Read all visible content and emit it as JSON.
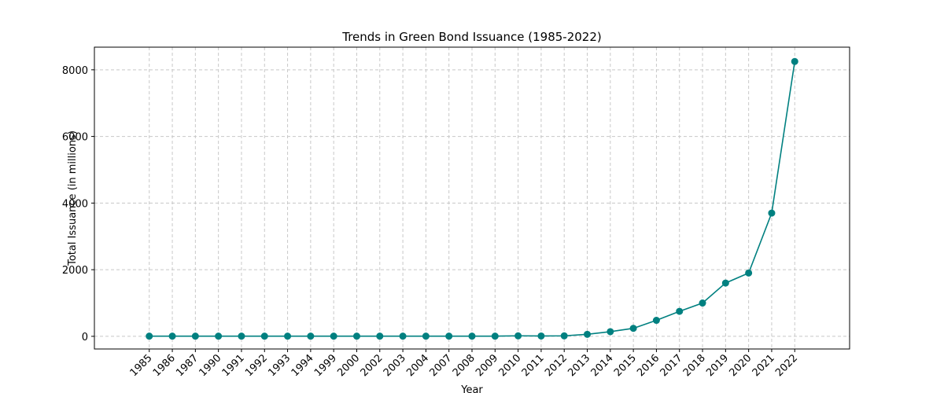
{
  "chart_data": {
    "type": "line",
    "title": "Trends in Green Bond Issuance (1985-2022)",
    "x_label": "Year",
    "y_label": "Total Issuance (in millions)",
    "categories": [
      "1985",
      "1986",
      "1987",
      "1990",
      "1991",
      "1992",
      "1993",
      "1994",
      "1999",
      "2000",
      "2002",
      "2003",
      "2004",
      "2007",
      "2008",
      "2009",
      "2010",
      "2011",
      "2012",
      "2013",
      "2014",
      "2015",
      "2016",
      "2017",
      "2018",
      "2019",
      "2020",
      "2021",
      "2022"
    ],
    "series": [
      {
        "name": "Total Issuance",
        "color": "#008080",
        "values": [
          5,
          5,
          5,
          5,
          5,
          5,
          5,
          5,
          5,
          5,
          5,
          5,
          5,
          5,
          5,
          5,
          15,
          10,
          15,
          60,
          140,
          240,
          480,
          750,
          1000,
          1600,
          1900,
          3700,
          8250
        ]
      }
    ],
    "ylim": [
      -380,
      8680
    ],
    "yticks": [
      0,
      2000,
      4000,
      6000,
      8000
    ],
    "grid": true
  }
}
